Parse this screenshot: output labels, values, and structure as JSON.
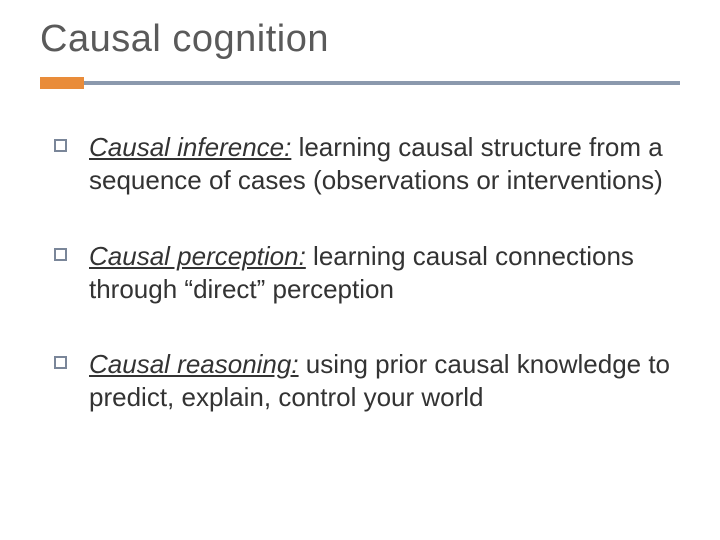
{
  "title": "Causal cognition",
  "colors": {
    "accent": "#e98c3a",
    "rule": "#8b99ad",
    "bullet_border": "#7a8699",
    "title_color": "#5a5a5a",
    "text_color": "#333333",
    "background": "#ffffff"
  },
  "typography": {
    "title_fontsize": 38,
    "body_fontsize": 26,
    "font_family": "Arial"
  },
  "bullets": [
    {
      "term": "Causal inference:",
      "rest": " learning causal structure from a sequence of cases (observations or interventions)"
    },
    {
      "term": "Causal perception:",
      "rest": " learning causal connections through “direct” perception"
    },
    {
      "term": "Causal reasoning:",
      "rest": " using prior causal knowledge to predict, explain, control your world"
    }
  ]
}
